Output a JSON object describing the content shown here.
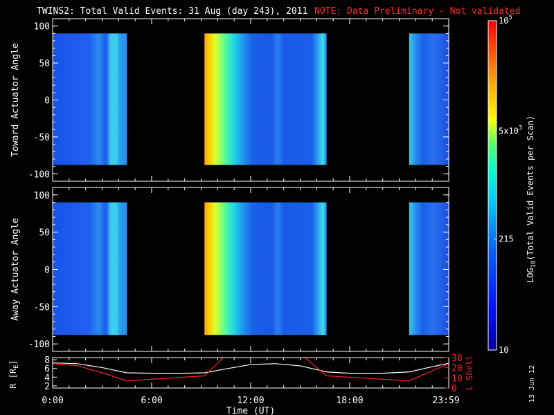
{
  "header": {
    "title": "TWINS2: Total Valid Events: 31 Aug (day 243), 2011",
    "note": "NOTE: Data Preliminary - Not validated"
  },
  "stamp": "13 Jun 12",
  "chart_data": [
    {
      "type": "heatmap",
      "ylabel": "Toward Actuator Angle",
      "ylim": [
        -110,
        110
      ],
      "yticks": [
        100,
        50,
        0,
        -50,
        -100
      ],
      "angle_range": [
        -88,
        90
      ],
      "xlim_hours": [
        0,
        24
      ],
      "data_intervals": [
        {
          "start": 0,
          "end": 4.5
        },
        {
          "start": 9.2,
          "end": 16.6
        },
        {
          "start": 21.6,
          "end": 24
        }
      ],
      "tick_labels": [
        "100",
        "50",
        "0",
        "-50",
        "-100"
      ]
    },
    {
      "type": "heatmap",
      "ylabel": "Away Actuator Angle",
      "ylim": [
        -110,
        110
      ],
      "yticks": [
        100,
        50,
        0,
        -50,
        -100
      ],
      "angle_range": [
        -88,
        90
      ],
      "xlim_hours": [
        0,
        24
      ],
      "data_intervals": [
        {
          "start": 0,
          "end": 4.5
        },
        {
          "start": 9.2,
          "end": 16.6
        },
        {
          "start": 21.6,
          "end": 24
        }
      ],
      "tick_labels": [
        "100",
        "50",
        "0",
        "-50",
        "-100"
      ]
    },
    {
      "type": "line",
      "ylabel_left": "R [R",
      "ylabel_left_sub": "E",
      "ylabel_left_end": "]",
      "ylabel_right": "L Shell",
      "left_ticks": [
        "8",
        "6",
        "4",
        "2"
      ],
      "right_ticks": [
        "30",
        "20",
        "10",
        "0"
      ],
      "ylim_left": [
        1.5,
        8.5
      ],
      "ylim_right": [
        0,
        30
      ],
      "xlabel": "Time (UT)",
      "x_tick_labels": [
        "0:00",
        "6:00",
        "12:00",
        "18:00",
        "23:59"
      ],
      "series": [
        {
          "name": "",
          "color": "#ffffff",
          "x": [
            0,
            1.5,
            3,
            4.5,
            6,
            8,
            9.2,
            10.5,
            12,
            13.5,
            15,
            16.6,
            18,
            20,
            21.6,
            23,
            24
          ],
          "y": [
            7.3,
            7.1,
            6.2,
            5.0,
            4.9,
            4.9,
            5.0,
            5.9,
            6.9,
            7.1,
            6.6,
            5.2,
            4.9,
            4.9,
            5.2,
            6.4,
            7.2
          ]
        },
        {
          "name": "",
          "color": "#ff2222",
          "axis": "right",
          "x": [
            0,
            1.5,
            3,
            4.5,
            9.2,
            10.4,
            15.2,
            16.6,
            21.6,
            24
          ],
          "y": [
            24,
            22,
            15,
            7,
            12,
            31,
            31,
            12,
            7,
            24
          ]
        }
      ]
    }
  ],
  "colorbar": {
    "label": "LOG",
    "label_sub": "10",
    "label_rest": "(Total Valid  Events per Scan)",
    "ticks": [
      {
        "text": "10",
        "sup": "5",
        "frac": 1.0
      },
      {
        "text": "5x10",
        "sup": "3",
        "frac": 0.665
      },
      {
        "text": "215",
        "sup": "",
        "frac": 0.337
      },
      {
        "text": "10",
        "sup": "",
        "frac": 0.0
      }
    ]
  },
  "colors": {
    "frame": "#ffffff",
    "note": "#ff2a2a",
    "red_line": "#ff2222"
  }
}
